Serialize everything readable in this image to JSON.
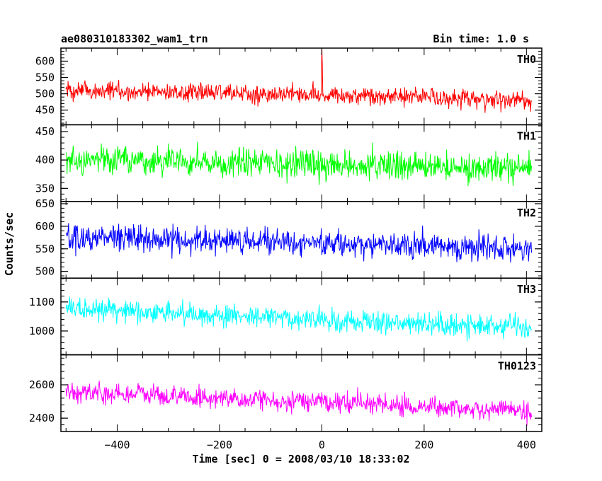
{
  "header": {
    "title": "ae080310183302_wam1_trn",
    "bin_time": "Bin time: 1.0 s"
  },
  "chart_data": {
    "type": "line",
    "xlabel": "Time [sec] 0 = 2008/03/10 18:33:02",
    "ylabel": "Counts/sec",
    "xlim": [
      -510,
      430
    ],
    "x_ticks": [
      -400,
      -200,
      0,
      200,
      400
    ],
    "x_tick_labels": [
      "−400",
      "−200",
      "0",
      "200",
      "400"
    ],
    "x_range": [
      -500,
      410
    ],
    "panels": [
      {
        "name": "TH0",
        "color": "#ff0000",
        "ylim": [
          405,
          640
        ],
        "ticks": [
          450,
          500,
          550,
          600
        ],
        "trend": [
          [
            -500,
            510
          ],
          [
            0,
            497
          ],
          [
            410,
            480
          ]
        ],
        "noise": 24,
        "spikes": [
          [
            0,
            650
          ],
          [
            1,
            590
          ]
        ]
      },
      {
        "name": "TH1",
        "color": "#00ff00",
        "ylim": [
          327,
          462
        ],
        "ticks": [
          350,
          400,
          450
        ],
        "trend": [
          [
            -500,
            400
          ],
          [
            0,
            392
          ],
          [
            410,
            385
          ]
        ],
        "noise": 21,
        "spikes": []
      },
      {
        "name": "TH2",
        "color": "#0000ff",
        "ylim": [
          485,
          655
        ],
        "ticks": [
          500,
          550,
          600,
          650
        ],
        "trend": [
          [
            -500,
            575
          ],
          [
            0,
            563
          ],
          [
            410,
            550
          ]
        ],
        "noise": 25,
        "spikes": []
      },
      {
        "name": "TH3",
        "color": "#00ffff",
        "ylim": [
          918,
          1182
        ],
        "ticks": [
          1000,
          1100
        ],
        "trend": [
          [
            -500,
            1080
          ],
          [
            -250,
            1060
          ],
          [
            0,
            1040
          ],
          [
            410,
            1010
          ]
        ],
        "noise": 33,
        "spikes": []
      },
      {
        "name": "TH0123",
        "color": "#ff00ff",
        "ylim": [
          2320,
          2780
        ],
        "ticks": [
          2400,
          2600
        ],
        "trend": [
          [
            -500,
            2560
          ],
          [
            -200,
            2520
          ],
          [
            0,
            2500
          ],
          [
            410,
            2440
          ]
        ],
        "noise": 52,
        "spikes": []
      }
    ]
  }
}
